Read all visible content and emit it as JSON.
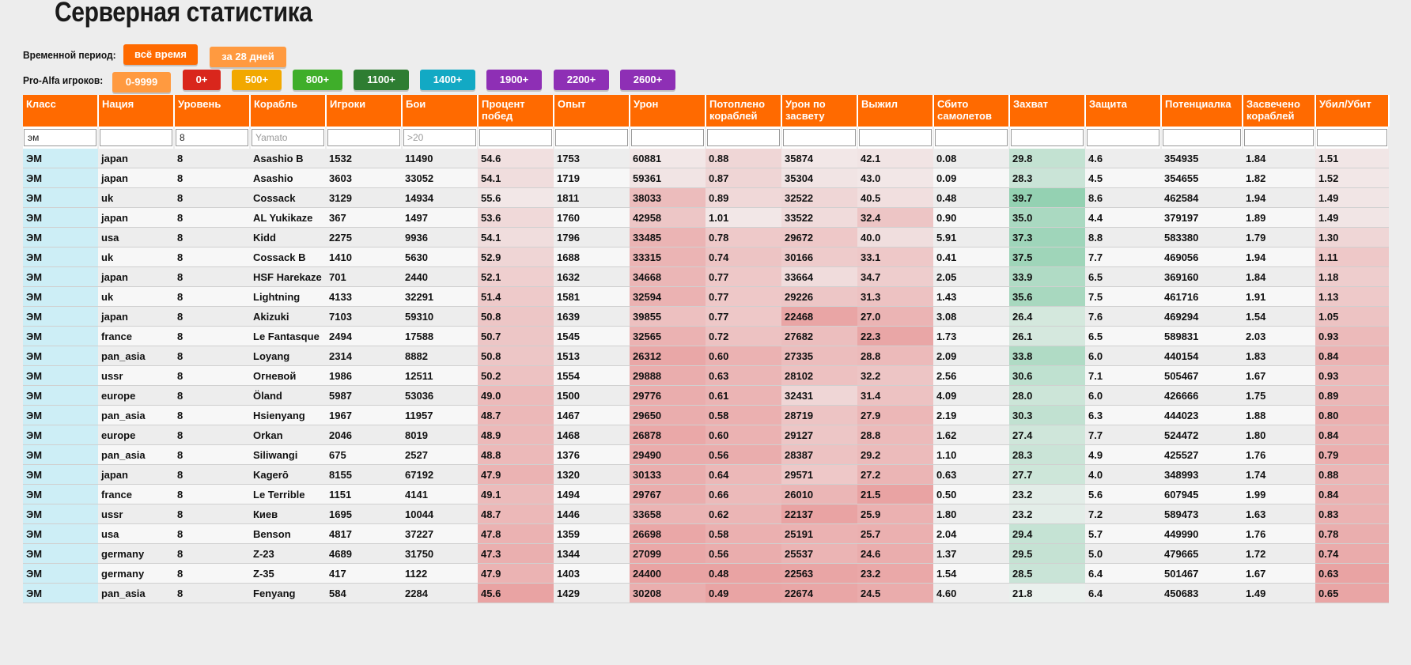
{
  "title": "Серверная статистика",
  "period": {
    "label": "Временной период:",
    "buttons": [
      {
        "label": "всё время",
        "color": "#ff6a00"
      },
      {
        "label": "за 28 дней",
        "color": "#ff9a40"
      }
    ]
  },
  "players": {
    "label": "Pro-Alfa игроков:",
    "buttons": [
      {
        "label": "0-9999",
        "color": "#ff9a40"
      },
      {
        "label": "0+",
        "color": "#d9261c"
      },
      {
        "label": "500+",
        "color": "#f2a800"
      },
      {
        "label": "800+",
        "color": "#3fae2a"
      },
      {
        "label": "1100+",
        "color": "#2e7d32"
      },
      {
        "label": "1400+",
        "color": "#12a9c4"
      },
      {
        "label": "1900+",
        "color": "#8e2fb5"
      },
      {
        "label": "2200+",
        "color": "#8e2fb5"
      },
      {
        "label": "2600+",
        "color": "#8e2fb5"
      }
    ]
  },
  "table": {
    "columns": [
      "Класс",
      "Нация",
      "Уровень",
      "Корабль",
      "Игроки",
      "Бои",
      "Процент побед",
      "Опыт",
      "Урон",
      "Потоплено кораблей",
      "Урон по засвету",
      "Выжил",
      "Сбито самолетов",
      "Захват",
      "Защита",
      "Потенциалка",
      "Засвечено кораблей",
      "Убил/Убит"
    ],
    "filters": [
      {
        "value": "эм",
        "placeholder": ""
      },
      {
        "value": "",
        "placeholder": ""
      },
      {
        "value": "8",
        "placeholder": ""
      },
      {
        "value": "",
        "placeholder": "Yamato"
      },
      {
        "value": "",
        "placeholder": ""
      },
      {
        "value": "",
        "placeholder": ">20"
      },
      {
        "value": "",
        "placeholder": ""
      },
      {
        "value": "",
        "placeholder": ""
      },
      {
        "value": "",
        "placeholder": ""
      },
      {
        "value": "",
        "placeholder": ""
      },
      {
        "value": "",
        "placeholder": ""
      },
      {
        "value": "",
        "placeholder": ""
      },
      {
        "value": "",
        "placeholder": ""
      },
      {
        "value": "",
        "placeholder": ""
      },
      {
        "value": "",
        "placeholder": ""
      },
      {
        "value": "",
        "placeholder": ""
      },
      {
        "value": "",
        "placeholder": ""
      },
      {
        "value": "",
        "placeholder": ""
      }
    ],
    "rows": [
      [
        "ЭМ",
        "japan",
        "8",
        "Asashio B",
        "1532",
        "11490",
        "54.6",
        "1753",
        "60881",
        "0.88",
        "35874",
        "42.1",
        "0.08",
        "29.8",
        "4.6",
        "354935",
        "1.84",
        "1.51"
      ],
      [
        "ЭМ",
        "japan",
        "8",
        "Asashio",
        "3603",
        "33052",
        "54.1",
        "1719",
        "59361",
        "0.87",
        "35304",
        "43.0",
        "0.09",
        "28.3",
        "4.5",
        "354655",
        "1.82",
        "1.52"
      ],
      [
        "ЭМ",
        "uk",
        "8",
        "Cossack",
        "3129",
        "14934",
        "55.6",
        "1811",
        "38033",
        "0.89",
        "32522",
        "40.5",
        "0.48",
        "39.7",
        "8.6",
        "462584",
        "1.94",
        "1.49"
      ],
      [
        "ЭМ",
        "japan",
        "8",
        "AL Yukikaze",
        "367",
        "1497",
        "53.6",
        "1760",
        "42958",
        "1.01",
        "33522",
        "32.4",
        "0.90",
        "35.0",
        "4.4",
        "379197",
        "1.89",
        "1.49"
      ],
      [
        "ЭМ",
        "usa",
        "8",
        "Kidd",
        "2275",
        "9936",
        "54.1",
        "1796",
        "33485",
        "0.78",
        "29672",
        "40.0",
        "5.91",
        "37.3",
        "8.8",
        "583380",
        "1.79",
        "1.30"
      ],
      [
        "ЭМ",
        "uk",
        "8",
        "Cossack B",
        "1410",
        "5630",
        "52.9",
        "1688",
        "33315",
        "0.74",
        "30166",
        "33.1",
        "0.41",
        "37.5",
        "7.7",
        "469056",
        "1.94",
        "1.11"
      ],
      [
        "ЭМ",
        "japan",
        "8",
        "HSF Harekaze",
        "701",
        "2440",
        "52.1",
        "1632",
        "34668",
        "0.77",
        "33664",
        "34.7",
        "2.05",
        "33.9",
        "6.5",
        "369160",
        "1.84",
        "1.18"
      ],
      [
        "ЭМ",
        "uk",
        "8",
        "Lightning",
        "4133",
        "32291",
        "51.4",
        "1581",
        "32594",
        "0.77",
        "29226",
        "31.3",
        "1.43",
        "35.6",
        "7.5",
        "461716",
        "1.91",
        "1.13"
      ],
      [
        "ЭМ",
        "japan",
        "8",
        "Akizuki",
        "7103",
        "59310",
        "50.8",
        "1639",
        "39855",
        "0.77",
        "22468",
        "27.0",
        "3.08",
        "26.4",
        "7.6",
        "469294",
        "1.54",
        "1.05"
      ],
      [
        "ЭМ",
        "france",
        "8",
        "Le Fantasque",
        "2494",
        "17588",
        "50.7",
        "1545",
        "32565",
        "0.72",
        "27682",
        "22.3",
        "1.73",
        "26.1",
        "6.5",
        "589831",
        "2.03",
        "0.93"
      ],
      [
        "ЭМ",
        "pan_asia",
        "8",
        "Loyang",
        "2314",
        "8882",
        "50.8",
        "1513",
        "26312",
        "0.60",
        "27335",
        "28.8",
        "2.09",
        "33.8",
        "6.0",
        "440154",
        "1.83",
        "0.84"
      ],
      [
        "ЭМ",
        "ussr",
        "8",
        "Огневой",
        "1986",
        "12511",
        "50.2",
        "1554",
        "29888",
        "0.63",
        "28102",
        "32.2",
        "2.56",
        "30.6",
        "7.1",
        "505467",
        "1.67",
        "0.93"
      ],
      [
        "ЭМ",
        "europe",
        "8",
        "Öland",
        "5987",
        "53036",
        "49.0",
        "1500",
        "29776",
        "0.61",
        "32431",
        "31.4",
        "4.09",
        "28.0",
        "6.0",
        "426666",
        "1.75",
        "0.89"
      ],
      [
        "ЭМ",
        "pan_asia",
        "8",
        "Hsienyang",
        "1967",
        "11957",
        "48.7",
        "1467",
        "29650",
        "0.58",
        "28719",
        "27.9",
        "2.19",
        "30.3",
        "6.3",
        "444023",
        "1.88",
        "0.80"
      ],
      [
        "ЭМ",
        "europe",
        "8",
        "Orkan",
        "2046",
        "8019",
        "48.9",
        "1468",
        "26878",
        "0.60",
        "29127",
        "28.8",
        "1.62",
        "27.4",
        "7.7",
        "524472",
        "1.80",
        "0.84"
      ],
      [
        "ЭМ",
        "pan_asia",
        "8",
        "Siliwangi",
        "675",
        "2527",
        "48.8",
        "1376",
        "29490",
        "0.56",
        "28387",
        "29.2",
        "1.10",
        "28.3",
        "4.9",
        "425527",
        "1.76",
        "0.79"
      ],
      [
        "ЭМ",
        "japan",
        "8",
        "Kagerō",
        "8155",
        "67192",
        "47.9",
        "1320",
        "30133",
        "0.64",
        "29571",
        "27.2",
        "0.63",
        "27.7",
        "4.0",
        "348993",
        "1.74",
        "0.88"
      ],
      [
        "ЭМ",
        "france",
        "8",
        "Le Terrible",
        "1151",
        "4141",
        "49.1",
        "1494",
        "29767",
        "0.66",
        "26010",
        "21.5",
        "0.50",
        "23.2",
        "5.6",
        "607945",
        "1.99",
        "0.84"
      ],
      [
        "ЭМ",
        "ussr",
        "8",
        "Киев",
        "1695",
        "10044",
        "48.7",
        "1446",
        "33658",
        "0.62",
        "22137",
        "25.9",
        "1.80",
        "23.2",
        "7.2",
        "589473",
        "1.63",
        "0.83"
      ],
      [
        "ЭМ",
        "usa",
        "8",
        "Benson",
        "4817",
        "37227",
        "47.8",
        "1359",
        "26698",
        "0.58",
        "25191",
        "25.7",
        "2.04",
        "29.4",
        "5.7",
        "449990",
        "1.76",
        "0.78"
      ],
      [
        "ЭМ",
        "germany",
        "8",
        "Z-23",
        "4689",
        "31750",
        "47.3",
        "1344",
        "27099",
        "0.56",
        "25537",
        "24.6",
        "1.37",
        "29.5",
        "5.0",
        "479665",
        "1.72",
        "0.74"
      ],
      [
        "ЭМ",
        "germany",
        "8",
        "Z-35",
        "417",
        "1122",
        "47.9",
        "1403",
        "24400",
        "0.48",
        "22563",
        "23.2",
        "1.54",
        "28.5",
        "6.4",
        "501467",
        "1.67",
        "0.63"
      ],
      [
        "ЭМ",
        "pan_asia",
        "8",
        "Fenyang",
        "584",
        "2284",
        "45.6",
        "1429",
        "30208",
        "0.49",
        "22674",
        "24.5",
        "4.60",
        "21.8",
        "6.4",
        "450683",
        "1.49",
        "0.65"
      ]
    ],
    "heat_columns": {
      "red": [
        6,
        8,
        9,
        10,
        11,
        17
      ],
      "green": [
        13
      ]
    },
    "heat_colors": {
      "klass": "#cdeef6",
      "red": "#e9a3a3",
      "green": "#94d1b2",
      "neutral": "#f3f3f3"
    }
  }
}
